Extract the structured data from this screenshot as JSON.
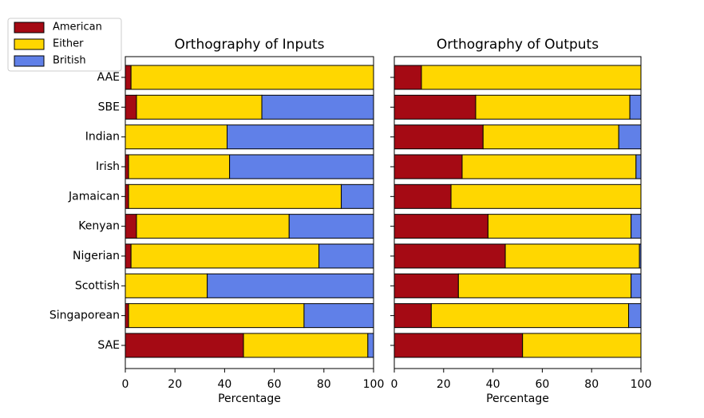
{
  "chart_data": [
    {
      "type": "barh_stacked",
      "title": "Orthography of Inputs",
      "xlabel": "Percentage",
      "categories": [
        "AAE",
        "SBE",
        "Indian",
        "Irish",
        "Jamaican",
        "Kenyan",
        "Nigerian",
        "Scottish",
        "Singaporean",
        "SAE"
      ],
      "series": [
        {
          "name": "American",
          "color": "#a50a14",
          "values": [
            2.3,
            4.5,
            0,
            1.3,
            1.3,
            4.5,
            2.3,
            0,
            1.3,
            47.6
          ]
        },
        {
          "name": "Either",
          "color": "#ffd700",
          "values": [
            97.7,
            50.5,
            41,
            40.7,
            85.7,
            61.5,
            75.7,
            33,
            70.7,
            50.1
          ]
        },
        {
          "name": "British",
          "color": "#6080e8",
          "values": [
            0,
            45,
            59,
            58,
            13,
            34,
            22,
            67,
            28,
            2.3
          ]
        }
      ],
      "xlim": [
        0,
        100
      ],
      "xticks": [
        0,
        20,
        40,
        60,
        80,
        100
      ]
    },
    {
      "type": "barh_stacked",
      "title": "Orthography of Outputs",
      "xlabel": "Percentage",
      "series": [
        {
          "color": "#a50a14",
          "values": [
            11,
            33,
            36,
            27.5,
            23,
            38,
            45,
            26,
            15,
            52
          ]
        },
        {
          "color": "#ffd700",
          "values": [
            89,
            62.5,
            55,
            70.5,
            77,
            58,
            54.4,
            70,
            80,
            48
          ]
        },
        {
          "color": "#6080e8",
          "values": [
            0,
            4.5,
            9,
            2,
            0,
            4,
            0.6,
            4,
            5,
            0
          ]
        }
      ],
      "xlim": [
        0,
        100
      ],
      "xticks": [
        0,
        20,
        40,
        60,
        80,
        100
      ]
    }
  ]
}
